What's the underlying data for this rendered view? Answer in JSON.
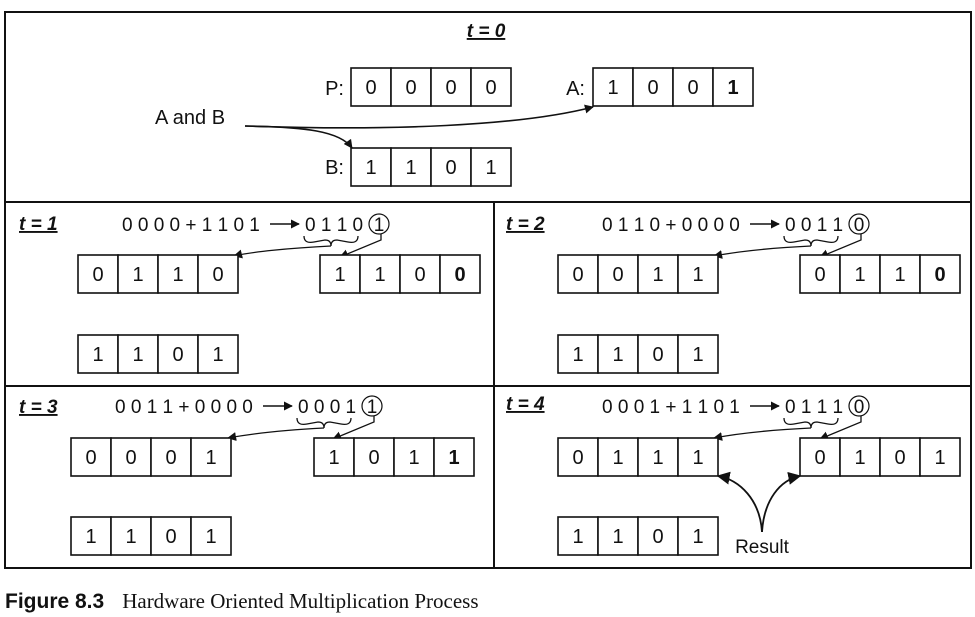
{
  "panels": {
    "t0": {
      "label": "t = 0",
      "p_label": "P:",
      "p_bits": [
        "0",
        "0",
        "0",
        "0"
      ],
      "a_label": "A:",
      "a_bits": [
        "1",
        "0",
        "0",
        "1"
      ],
      "b_label": "B:",
      "b_bits": [
        "1",
        "1",
        "0",
        "1"
      ],
      "note": "A and B"
    },
    "t1": {
      "label": "t = 1",
      "op_left": "0 0 0 0 + 1 1 0 1",
      "op_result": "0 1 1 0",
      "lsb": "1",
      "p_bits": [
        "0",
        "1",
        "1",
        "0"
      ],
      "a_bits": [
        "1",
        "1",
        "0",
        "0"
      ],
      "b_bits": [
        "1",
        "1",
        "0",
        "1"
      ]
    },
    "t2": {
      "label": "t = 2",
      "op_left": "0 1 1 0 + 0 0 0 0",
      "op_result": "0 0 1 1",
      "lsb": "0",
      "p_bits": [
        "0",
        "0",
        "1",
        "1"
      ],
      "a_bits": [
        "0",
        "1",
        "1",
        "0"
      ],
      "b_bits": [
        "1",
        "1",
        "0",
        "1"
      ]
    },
    "t3": {
      "label": "t = 3",
      "op_left": "0 0 1 1 + 0 0 0 0",
      "op_result": "0 0 0 1",
      "lsb": "1",
      "p_bits": [
        "0",
        "0",
        "0",
        "1"
      ],
      "a_bits": [
        "1",
        "0",
        "1",
        "1"
      ],
      "b_bits": [
        "1",
        "1",
        "0",
        "1"
      ]
    },
    "t4": {
      "label": "t = 4",
      "op_left": "0 0 0 1 + 1 1 0 1",
      "op_result": "0 1 1 1",
      "lsb": "0",
      "p_bits": [
        "0",
        "1",
        "1",
        "1"
      ],
      "a_bits": [
        "0",
        "1",
        "0",
        "1"
      ],
      "b_bits": [
        "1",
        "1",
        "0",
        "1"
      ],
      "result_label": "Result"
    }
  },
  "caption": {
    "label": "Figure 8.3",
    "title": "Hardware Oriented Multiplication Process"
  }
}
